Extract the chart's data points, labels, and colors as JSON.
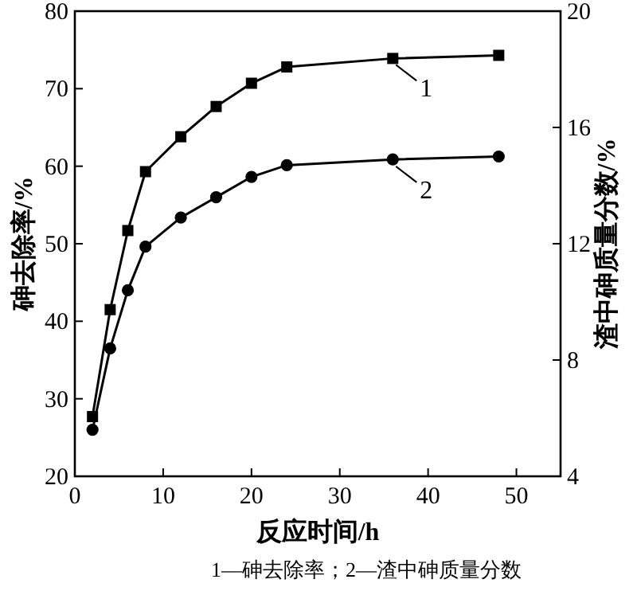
{
  "chart_data": {
    "type": "line",
    "xlabel": "反应时间/h",
    "ylabel": "砷去除率/%",
    "y2label": "渣中砷质量分数/%",
    "xlim": [
      0,
      55
    ],
    "xticks": [
      0,
      10,
      20,
      30,
      40,
      50
    ],
    "ylim": [
      20,
      80
    ],
    "yticks": [
      20,
      30,
      40,
      50,
      60,
      70,
      80
    ],
    "y2lim": [
      4,
      20
    ],
    "y2ticks": [
      4,
      8,
      12,
      16,
      20
    ],
    "grid": false,
    "line_style": "solid",
    "series": [
      {
        "x": [
          2,
          4,
          6,
          8,
          12,
          16,
          20,
          24,
          36,
          48
        ],
        "values": [
          27.7,
          41.5,
          51.7,
          59.3,
          63.8,
          67.7,
          70.7,
          72.8,
          73.9,
          74.3
        ],
        "color": "#000000",
        "marker": "square"
      },
      {
        "x": [
          2,
          4,
          6,
          8,
          12,
          16,
          20,
          24,
          36,
          48
        ],
        "values": [
          5.6,
          8.4,
          10.4,
          11.9,
          12.9,
          13.6,
          14.3,
          14.7,
          14.9,
          15.0
        ],
        "color": "#000000",
        "marker": "circle",
        "axis": "y2"
      }
    ],
    "annotations": [
      {
        "text": "1",
        "x": 36,
        "y": 73.9
      },
      {
        "text": "2",
        "x": 36,
        "y": 60.8
      },
      "1—砷去除率；2—渣中砷质量分数"
    ]
  }
}
